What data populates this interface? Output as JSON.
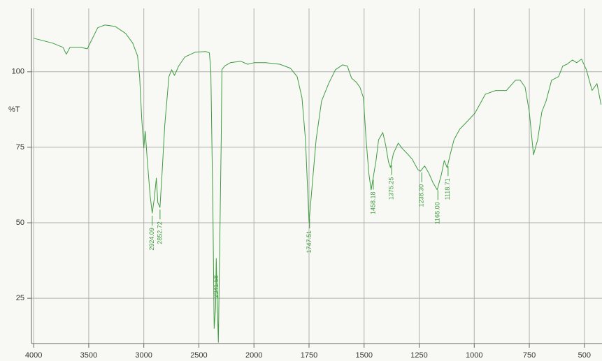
{
  "chart_data": {
    "type": "line",
    "y_label": "%T",
    "x": [
      4000,
      3924,
      3829,
      3734,
      3703,
      3671,
      3576,
      3513,
      3481,
      3418,
      3354,
      3259,
      3165,
      3101,
      3057,
      3038,
      3019,
      3000,
      2987,
      2968,
      2943,
      2924,
      2905,
      2886,
      2873,
      2853,
      2835,
      2810,
      2772,
      2747,
      2722,
      2684,
      2627,
      2532,
      2437,
      2405,
      2392,
      2373,
      2361,
      2348,
      2342,
      2335,
      2323,
      2297,
      2291,
      2266,
      2215,
      2120,
      2057,
      2000,
      1946,
      1883,
      1835,
      1804,
      1782,
      1766,
      1750,
      1737,
      1718,
      1693,
      1661,
      1630,
      1598,
      1576,
      1557,
      1535,
      1519,
      1503,
      1491,
      1478,
      1468,
      1459,
      1446,
      1434,
      1415,
      1402,
      1389,
      1380,
      1367,
      1345,
      1329,
      1304,
      1282,
      1256,
      1244,
      1225,
      1206,
      1187,
      1168,
      1149,
      1136,
      1123,
      1108,
      1092,
      1066,
      1035,
      997,
      949,
      902,
      854,
      813,
      791,
      769,
      750,
      731,
      712,
      693,
      674,
      649,
      617,
      598,
      579,
      554,
      535,
      513,
      491,
      465,
      443,
      424
    ],
    "series": [
      {
        "name": "%T",
        "color": "#3f9c3f",
        "values": [
          111.1,
          110.4,
          109.5,
          108.1,
          105.8,
          108.1,
          108.1,
          107.6,
          110,
          114.6,
          115.5,
          115,
          112.7,
          109.5,
          105.3,
          98.4,
          84.5,
          74.8,
          80.3,
          70.6,
          59,
          53.2,
          57.9,
          64.8,
          56.7,
          55.1,
          66,
          82.2,
          98.4,
          100.7,
          98.8,
          101.9,
          104.9,
          106.5,
          106.7,
          106.3,
          100.7,
          54.4,
          15,
          22,
          38.2,
          26.6,
          10.4,
          77.5,
          100.7,
          101.9,
          103,
          103.5,
          102.5,
          103,
          103,
          102.5,
          101.2,
          98.4,
          91.4,
          77.5,
          50.2,
          61.3,
          77.5,
          90.3,
          96.1,
          100.7,
          102.3,
          101.9,
          97.9,
          96.5,
          94.9,
          91.4,
          77.5,
          66,
          60.9,
          64.8,
          70.6,
          77.5,
          79.9,
          75.7,
          70.1,
          68.3,
          72.9,
          76.4,
          74.8,
          72.9,
          71.1,
          67.6,
          67.1,
          68.8,
          66.4,
          63.2,
          60.9,
          66,
          70.6,
          68.3,
          72.9,
          77.5,
          81,
          83.3,
          86.3,
          92.6,
          93.8,
          93.8,
          97.2,
          97.2,
          94.9,
          86.8,
          72.5,
          77.5,
          86.8,
          90.3,
          97.2,
          98.4,
          101.9,
          102.5,
          103.9,
          103,
          104.2,
          100.7,
          93.8,
          96.1,
          89.1
        ]
      }
    ],
    "peaks": [
      2924.09,
      2852.72,
      2341.58,
      1747.51,
      1458.18,
      1375.25,
      {
        "value": 1238.3,
        "label": "1238.30"
      },
      {
        "value": 1165,
        "label": "1165.00"
      },
      1118.71
    ],
    "xlim": [
      4020,
      420
    ],
    "xticks": [
      4000,
      3500,
      3000,
      2500,
      2000,
      1750,
      1500,
      1250,
      1000,
      750,
      500
    ],
    "ylim": [
      10,
      121
    ],
    "yticks": [
      25,
      50,
      75,
      100
    ],
    "grid": true
  }
}
